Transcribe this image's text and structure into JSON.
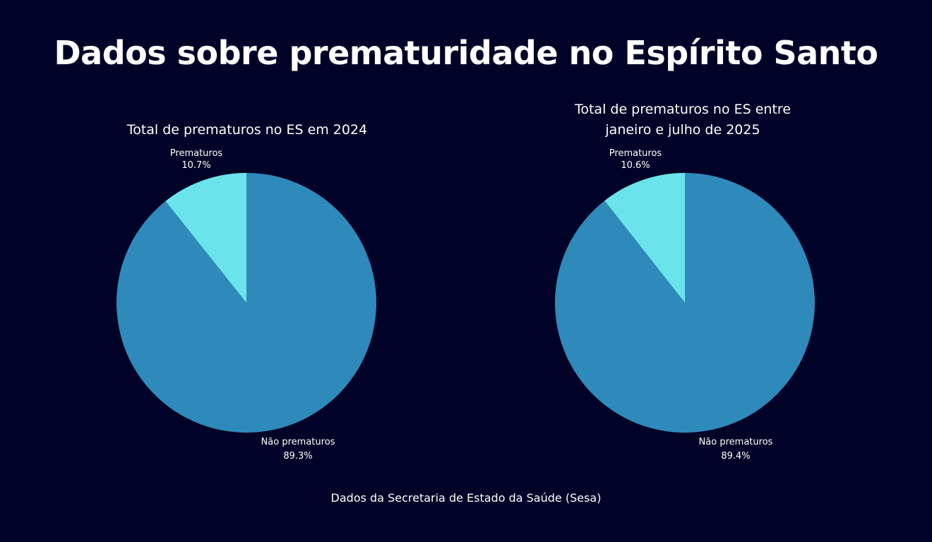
{
  "title": "Dados sobre prematuridade no Espírito Santo",
  "source": "Dados da Secretaria de Estado da Saúde (Sesa)",
  "colors": {
    "background": "#000327",
    "prematuros": "#6ae4ea",
    "nao_prematuros": "#2e8aba",
    "text": "#ffffff"
  },
  "chart_data": [
    {
      "type": "pie",
      "title_lines": [
        "Total de prematuros no ES em 2024"
      ],
      "slices": [
        {
          "label": "Prematuros",
          "value": 10.7,
          "display": "10.7%"
        },
        {
          "label": "Não prematuros",
          "value": 89.3,
          "display": "89.3%"
        }
      ]
    },
    {
      "type": "pie",
      "title_lines": [
        "Total de prematuros no ES entre",
        "janeiro e julho de 2025"
      ],
      "slices": [
        {
          "label": "Prematuros",
          "value": 10.6,
          "display": "10.6%"
        },
        {
          "label": "Não prematuros",
          "value": 89.4,
          "display": "89.4%"
        }
      ]
    }
  ]
}
